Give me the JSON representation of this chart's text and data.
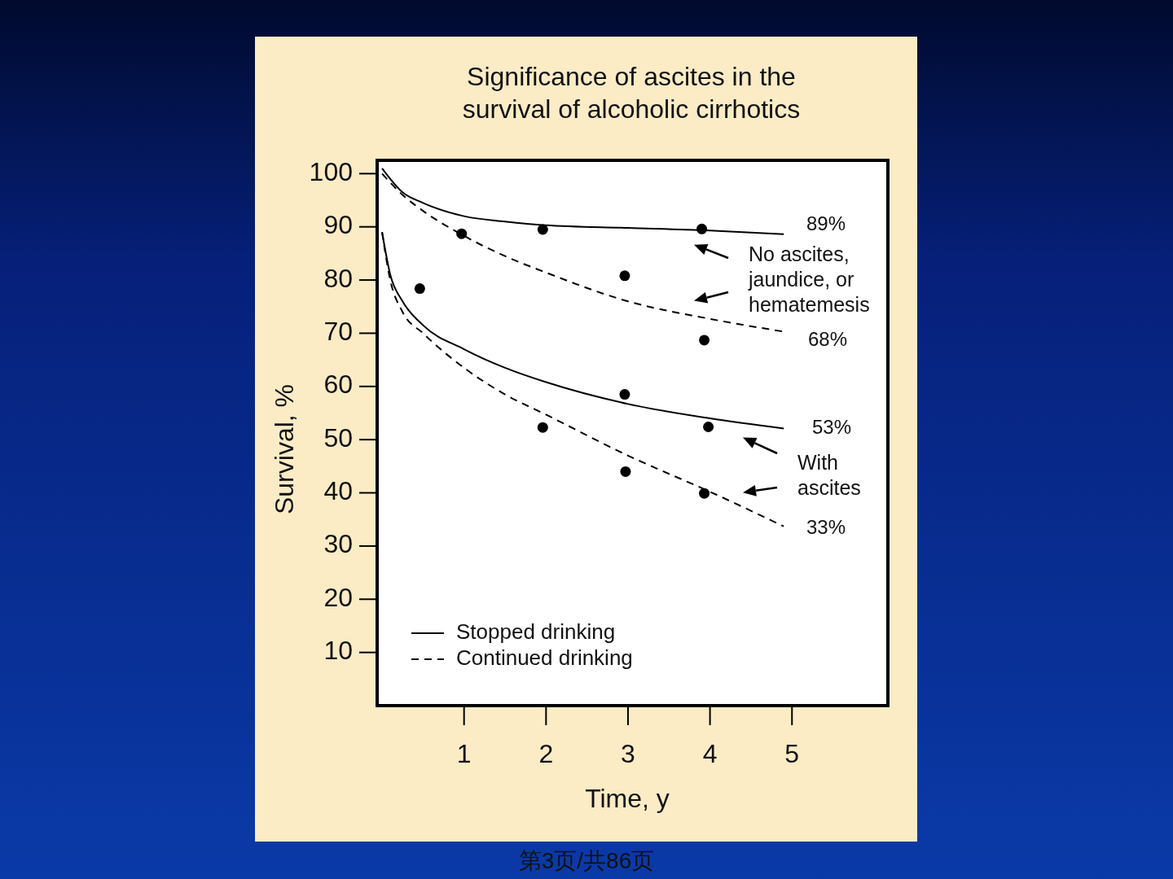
{
  "chart_data": {
    "type": "line",
    "title": "Significance of ascites in the\nsurvival of alcoholic cirrhotics",
    "xlabel": "Time, y",
    "ylabel": "Survival, %",
    "xlim": [
      -0.06,
      6.17
    ],
    "ylim": [
      0,
      102.5
    ],
    "xticks": [
      1,
      2,
      3,
      4,
      5
    ],
    "yticks": [
      10,
      20,
      30,
      40,
      50,
      60,
      70,
      80,
      90,
      100
    ],
    "grid": false,
    "legend": "bottom left",
    "series": [
      {
        "name": "Stopped drinking",
        "color": "#000000",
        "line_style": "solid",
        "x": [
          0,
          0.25,
          0.5,
          1,
          1.5,
          2,
          3,
          4,
          4.9
        ],
        "values": [
          101,
          96.5,
          94.5,
          92,
          91,
          90.3,
          89.8,
          89.3,
          88.6
        ]
      },
      {
        "name": "Continued drinking",
        "color": "#000000",
        "line_style": "dashed",
        "x": [
          0,
          0.25,
          0.5,
          1,
          1.5,
          2,
          3,
          4,
          4.9
        ],
        "values": [
          100,
          96,
          93,
          88.3,
          84.5,
          81.4,
          76,
          72.7,
          70.3
        ]
      },
      {
        "color": "#000000",
        "line_style": "solid",
        "x": [
          0,
          0.1,
          0.25,
          0.5,
          1,
          1.5,
          2,
          3,
          4,
          4.9
        ],
        "values": [
          89,
          81,
          76,
          71.5,
          67,
          63.5,
          60.8,
          56.7,
          54,
          52.1
        ]
      },
      {
        "color": "#000000",
        "line_style": "dashed",
        "x": [
          0,
          0.1,
          0.25,
          0.5,
          1,
          1.5,
          2,
          3,
          4,
          4.9
        ],
        "values": [
          89,
          80,
          74,
          70,
          63.5,
          58.5,
          54.7,
          47,
          40.2,
          33.7
        ]
      },
      {
        "type": "scatter",
        "color": "#000000",
        "marker": "circle",
        "x": [
          0.46,
          0.97,
          1.96,
          2.96,
          3.9,
          3.93,
          2.96,
          1.96,
          3.98,
          2.97,
          3.93
        ],
        "values": [
          78.4,
          88.7,
          89.5,
          80.8,
          89.6,
          68.7,
          58.5,
          52.3,
          52.4,
          44,
          39.9
        ]
      }
    ],
    "annotations": [
      "89%",
      "68%",
      "53%",
      "33%",
      "No ascites,\njaundice, or\nhematemesis",
      "With\nascites",
      "第3页/共86页"
    ]
  }
}
